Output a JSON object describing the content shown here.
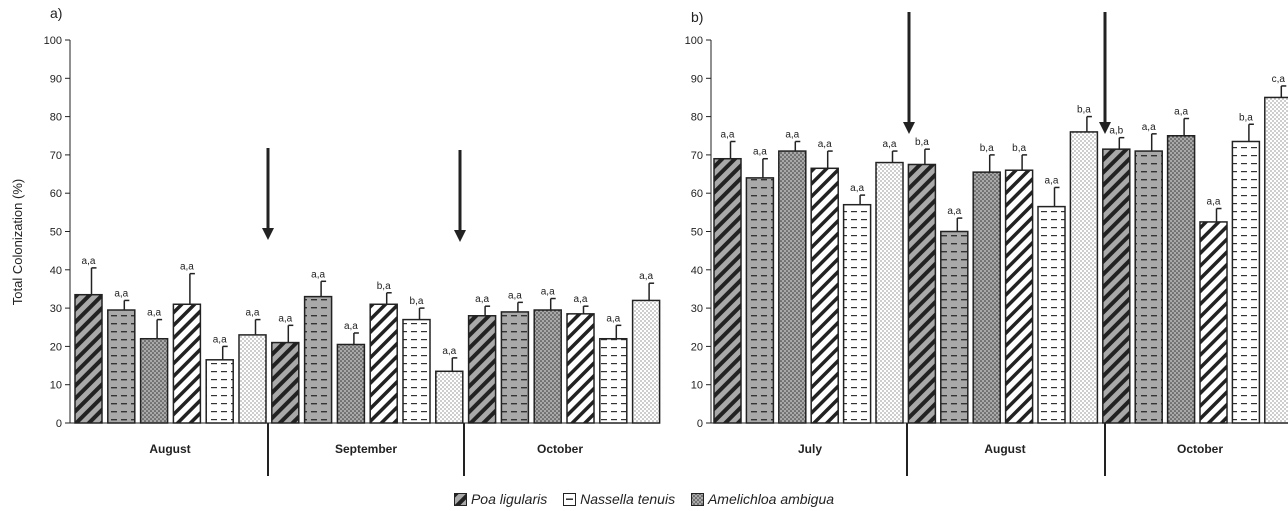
{
  "chart_data": [
    {
      "type": "bar",
      "panel_label": "a)",
      "ylabel": "Total Colonization (%)",
      "ylim": [
        0,
        100
      ],
      "yticks": [
        0,
        10,
        20,
        30,
        40,
        50,
        60,
        70,
        80,
        90,
        100
      ],
      "groups": [
        "August",
        "September",
        "October"
      ],
      "bars": [
        {
          "group": 0,
          "species": "Poa ligularis",
          "treatment": "grey",
          "value": 33.5,
          "error": 7,
          "label": "a,a"
        },
        {
          "group": 0,
          "species": "Nassella tenuis",
          "treatment": "grey",
          "value": 29.5,
          "error": 2.5,
          "label": "a,a"
        },
        {
          "group": 0,
          "species": "Amelichloa ambigua",
          "treatment": "grey",
          "value": 22,
          "error": 5,
          "label": "a,a"
        },
        {
          "group": 0,
          "species": "Poa ligularis",
          "treatment": "white",
          "value": 31,
          "error": 8,
          "label": "a,a"
        },
        {
          "group": 0,
          "species": "Nassella tenuis",
          "treatment": "white",
          "value": 16.5,
          "error": 3.5,
          "label": "a,a"
        },
        {
          "group": 0,
          "species": "Amelichloa ambigua",
          "treatment": "white",
          "value": 23,
          "error": 4,
          "label": "a,a"
        },
        {
          "group": 1,
          "species": "Poa ligularis",
          "treatment": "grey",
          "value": 21,
          "error": 4.5,
          "label": "a,a"
        },
        {
          "group": 1,
          "species": "Nassella tenuis",
          "treatment": "grey",
          "value": 33,
          "error": 4,
          "label": "a,a"
        },
        {
          "group": 1,
          "species": "Amelichloa ambigua",
          "treatment": "grey",
          "value": 20.5,
          "error": 3,
          "label": "a,a"
        },
        {
          "group": 1,
          "species": "Poa ligularis",
          "treatment": "white",
          "value": 31,
          "error": 3,
          "label": "b,a"
        },
        {
          "group": 1,
          "species": "Nassella tenuis",
          "treatment": "white",
          "value": 27,
          "error": 3,
          "label": "b,a"
        },
        {
          "group": 1,
          "species": "Amelichloa ambigua",
          "treatment": "white",
          "value": 13.5,
          "error": 3.5,
          "label": "a,a"
        },
        {
          "group": 2,
          "species": "Poa ligularis",
          "treatment": "grey",
          "value": 28,
          "error": 2.5,
          "label": "a,a"
        },
        {
          "group": 2,
          "species": "Nassella tenuis",
          "treatment": "grey",
          "value": 29,
          "error": 2.5,
          "label": "a,a"
        },
        {
          "group": 2,
          "species": "Amelichloa ambigua",
          "treatment": "grey",
          "value": 29.5,
          "error": 3,
          "label": "a,a"
        },
        {
          "group": 2,
          "species": "Poa ligularis",
          "treatment": "white",
          "value": 28.5,
          "error": 2,
          "label": "a,a"
        },
        {
          "group": 2,
          "species": "Nassella tenuis",
          "treatment": "white",
          "value": 22,
          "error": 3.5,
          "label": "a,a"
        },
        {
          "group": 2,
          "species": "Amelichloa ambigua",
          "treatment": "white",
          "value": 32,
          "error": 4.5,
          "label": "a,a"
        }
      ]
    },
    {
      "type": "bar",
      "panel_label": "b)",
      "ylabel": "",
      "ylim": [
        0,
        100
      ],
      "yticks": [
        0,
        10,
        20,
        30,
        40,
        50,
        60,
        70,
        80,
        90,
        100
      ],
      "groups": [
        "July",
        "August",
        "October"
      ],
      "bars": [
        {
          "group": 0,
          "species": "Poa ligularis",
          "treatment": "grey",
          "value": 69,
          "error": 4.5,
          "label": "a,a"
        },
        {
          "group": 0,
          "species": "Nassella tenuis",
          "treatment": "grey",
          "value": 64,
          "error": 5,
          "label": "a,a"
        },
        {
          "group": 0,
          "species": "Amelichloa ambigua",
          "treatment": "grey",
          "value": 71,
          "error": 2.5,
          "label": "a,a"
        },
        {
          "group": 0,
          "species": "Poa ligularis",
          "treatment": "white",
          "value": 66.5,
          "error": 4.5,
          "label": "a,a"
        },
        {
          "group": 0,
          "species": "Nassella tenuis",
          "treatment": "white",
          "value": 57,
          "error": 2.5,
          "label": "a,a"
        },
        {
          "group": 0,
          "species": "Amelichloa ambigua",
          "treatment": "white",
          "value": 68,
          "error": 3,
          "label": "a,a"
        },
        {
          "group": 1,
          "species": "Poa ligularis",
          "treatment": "grey",
          "value": 67.5,
          "error": 4,
          "label": "b,a"
        },
        {
          "group": 1,
          "species": "Nassella tenuis",
          "treatment": "grey",
          "value": 50,
          "error": 3.5,
          "label": "a,a"
        },
        {
          "group": 1,
          "species": "Amelichloa ambigua",
          "treatment": "grey",
          "value": 65.5,
          "error": 4.5,
          "label": "b,a"
        },
        {
          "group": 1,
          "species": "Poa ligularis",
          "treatment": "white",
          "value": 66,
          "error": 4,
          "label": "b,a"
        },
        {
          "group": 1,
          "species": "Nassella tenuis",
          "treatment": "white",
          "value": 56.5,
          "error": 5,
          "label": "a,a"
        },
        {
          "group": 1,
          "species": "Amelichloa ambigua",
          "treatment": "white",
          "value": 76,
          "error": 4,
          "label": "b,a"
        },
        {
          "group": 2,
          "species": "Poa ligularis",
          "treatment": "grey",
          "value": 71.5,
          "error": 3,
          "label": "a,b"
        },
        {
          "group": 2,
          "species": "Nassella tenuis",
          "treatment": "grey",
          "value": 71,
          "error": 4.5,
          "label": "a,a"
        },
        {
          "group": 2,
          "species": "Amelichloa ambigua",
          "treatment": "grey",
          "value": 75,
          "error": 4.5,
          "label": "a,a"
        },
        {
          "group": 2,
          "species": "Poa ligularis",
          "treatment": "white",
          "value": 52.5,
          "error": 3.5,
          "label": "a,a"
        },
        {
          "group": 2,
          "species": "Nassella tenuis",
          "treatment": "white",
          "value": 73.5,
          "error": 4.5,
          "label": "b,a"
        },
        {
          "group": 2,
          "species": "Amelichloa ambigua",
          "treatment": "white",
          "value": 85,
          "error": 3,
          "label": "c,a"
        }
      ]
    }
  ],
  "legend": {
    "items": [
      {
        "label": "Poa ligularis",
        "pattern": "diagonal"
      },
      {
        "label": "Nassella tenuis",
        "pattern": "dashes"
      },
      {
        "label": "Amelichloa ambigua",
        "pattern": "dots"
      }
    ]
  },
  "colors": {
    "grey_fill": "#a9a9a9",
    "white_fill": "#ffffff",
    "stroke": "#222222"
  }
}
